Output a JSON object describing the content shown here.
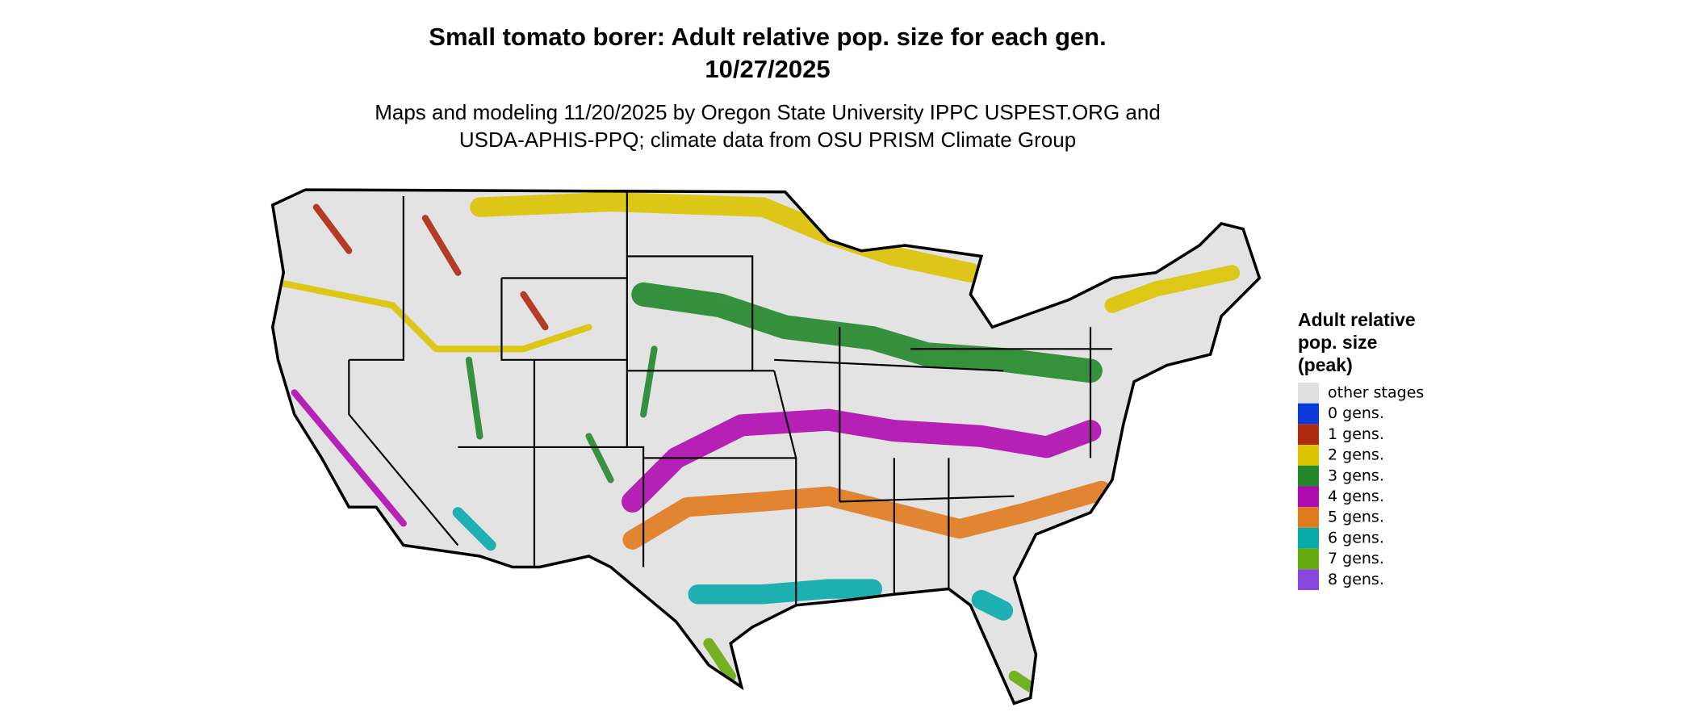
{
  "header": {
    "title": "Small tomato borer: Adult relative pop. size for each gen.",
    "date": "10/27/2025",
    "subtitle_lines": [
      "Maps and modeling 11/20/2025 by Oregon State University IPPC USPEST.ORG and",
      "USDA-APHIS-PPQ; climate data from OSU PRISM Climate Group"
    ]
  },
  "legend": {
    "title_lines": [
      "Adult relative",
      "pop. size",
      "(peak)"
    ],
    "items": [
      {
        "label": "other stages",
        "color": "#e0e0e0"
      },
      {
        "label": "0 gens.",
        "color": "#0a3bd8"
      },
      {
        "label": "1 gens.",
        "color": "#b02a12"
      },
      {
        "label": "2 gens.",
        "color": "#dcc300"
      },
      {
        "label": "3 gens.",
        "color": "#22882a"
      },
      {
        "label": "4 gens.",
        "color": "#b10cb1"
      },
      {
        "label": "5 gens.",
        "color": "#e07a1e"
      },
      {
        "label": "6 gens.",
        "color": "#08aaaa"
      },
      {
        "label": "7 gens.",
        "color": "#66ab0e"
      },
      {
        "label": "8 gens.",
        "color": "#8a46e0"
      }
    ]
  }
}
